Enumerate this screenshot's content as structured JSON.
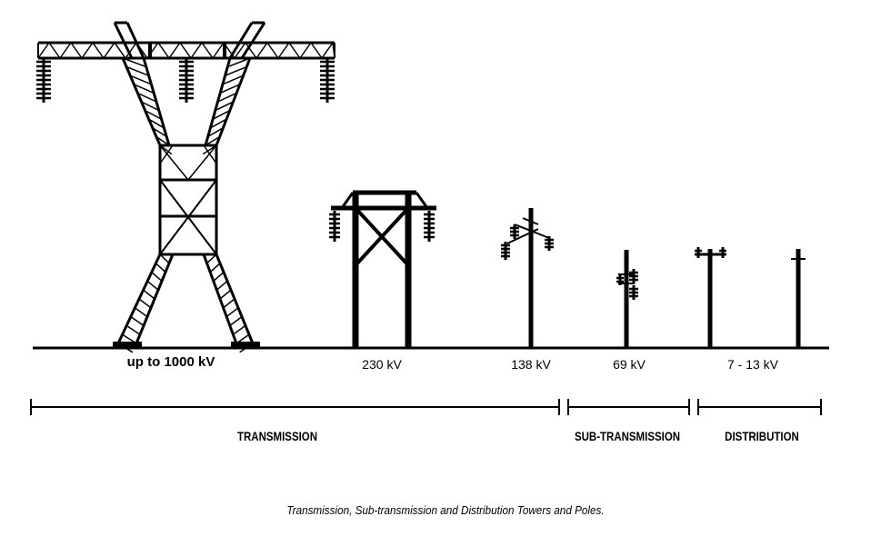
{
  "voltages": {
    "lattice": "up to 1000 kV",
    "h_frame": "230 kV",
    "pole_138": "138 kV",
    "pole_69": "69 kV",
    "distribution": "7 - 13 kV"
  },
  "categories": {
    "transmission": "TRANSMISSION",
    "sub_transmission": "SUB-TRANSMISSION",
    "distribution": "DISTRIBUTION"
  },
  "caption": "Transmission, Sub-transmission and Distribution Towers and Poles.",
  "colors": {
    "ink": "#000000",
    "background": "#ffffff"
  }
}
